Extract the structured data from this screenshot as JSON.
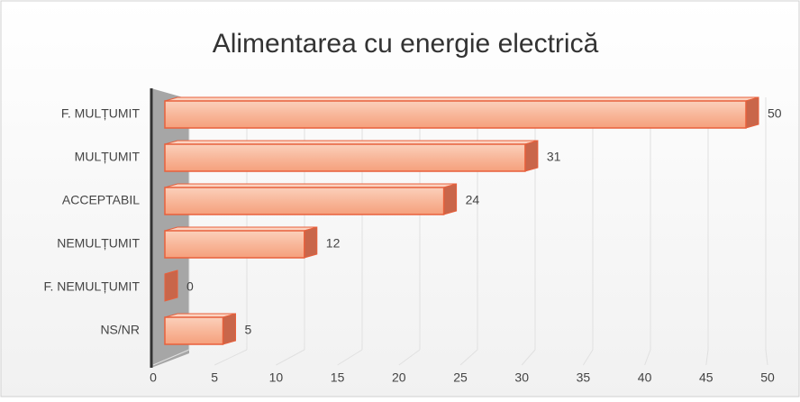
{
  "chart_data": {
    "type": "bar",
    "orientation": "horizontal",
    "title": "Alimentarea cu energie electrică",
    "categories": [
      "F. MULȚUMIT",
      "MULȚUMIT",
      "ACCEPTABIL",
      "NEMULȚUMIT",
      "F. NEMULȚUMIT",
      "NS/NR"
    ],
    "values": [
      50,
      31,
      24,
      12,
      0,
      5
    ],
    "color": "#f8b79a",
    "xlim": [
      0,
      50
    ],
    "xticks": [
      0,
      5,
      10,
      15,
      20,
      25,
      30,
      35,
      40,
      45,
      50
    ],
    "grid": true
  }
}
